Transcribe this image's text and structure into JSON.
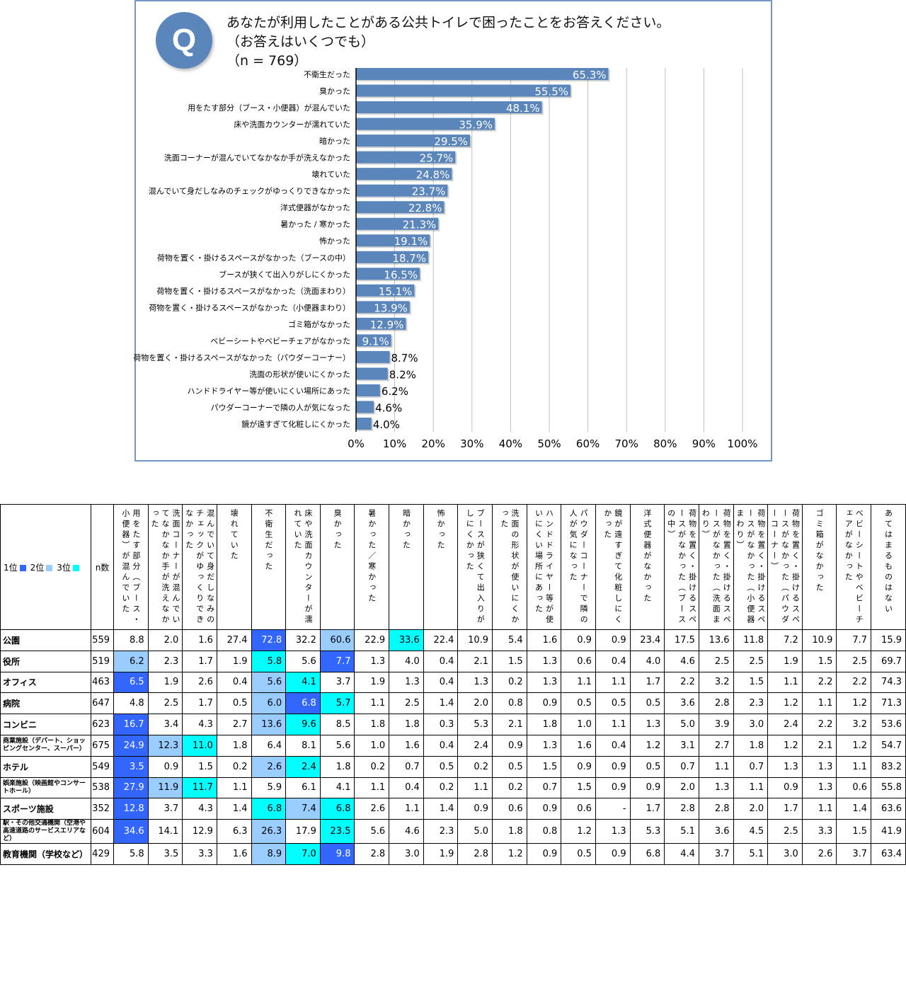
{
  "question": {
    "badge": "Q",
    "line1": "あなたが利用したことがある公共トイレで困ったことをお答えください。",
    "line2": "（お答えはいくつでも）",
    "line3": "（n = 769）"
  },
  "colors": {
    "bar": "#5b86bc",
    "rank1": "#3366ff",
    "rank2": "#99ccff",
    "rank3": "#00ffff"
  },
  "chart_data": {
    "type": "bar",
    "orientation": "horizontal",
    "title": "あなたが利用したことがある公共トイレで困ったことをお答えください。（お答えはいくつでも）（n = 769）",
    "categories": [
      "不衛生だった",
      "臭かった",
      "用をたす部分（ブース・小便器）が混んでいた",
      "床や洗面カウンターが濡れていた",
      "暗かった",
      "洗面コーナーが混んでいてなかなか手が洗えなかった",
      "壊れていた",
      "混んでいて身だしなみのチェックがゆっくりできなかった",
      "洋式便器がなかった",
      "暑かった / 寒かった",
      "怖かった",
      "荷物を置く・掛けるスペースがなかった（ブースの中）",
      "ブースが狭くて出入りがしにくかった",
      "荷物を置く・掛けるスペースがなかった（洗面まわり）",
      "荷物を置く・掛けるスペースがなかった（小便器まわり）",
      "ゴミ箱がなかった",
      "ベビーシートやベビーチェアがなかった",
      "荷物を置く・掛けるスペースがなかった（パウダーコーナー）",
      "洗面の形状が使いにくかった",
      "ハンドドライヤー等が使いにくい場所にあった",
      "パウダーコーナーで隣の人が気になった",
      "鏡が遠すぎて化粧しにくかった"
    ],
    "values": [
      65.3,
      55.5,
      48.1,
      35.9,
      29.5,
      25.7,
      24.8,
      23.7,
      22.8,
      21.3,
      19.1,
      18.7,
      16.5,
      15.1,
      13.9,
      12.9,
      9.1,
      8.7,
      8.2,
      6.2,
      4.6,
      4.0
    ],
    "value_labels": [
      "65.3%",
      "55.5%",
      "48.1%",
      "35.9%",
      "29.5%",
      "25.7%",
      "24.8%",
      "23.7%",
      "22.8%",
      "21.3%",
      "19.1%",
      "18.7%",
      "16.5%",
      "15.1%",
      "13.9%",
      "12.9%",
      "9.1%",
      "8.7%",
      "8.2%",
      "6.2%",
      "4.6%",
      "4.0%"
    ],
    "xlim": [
      0,
      100
    ],
    "xticks": [
      "0%",
      "10%",
      "20%",
      "30%",
      "40%",
      "50%",
      "60%",
      "70%",
      "80%",
      "90%",
      "100%"
    ],
    "grid": true,
    "xlabel": "",
    "ylabel": ""
  },
  "table": {
    "legend": {
      "rank1": "1位",
      "rank2": "2位",
      "rank3": "3位"
    },
    "n_header": "n数",
    "columns": [
      "用をたす部分（ブース・小便器）が混んでいた",
      "洗面コーナーが混んでいてなかなか手が洗えなかった",
      "混んでいて身だしなみのチェックがゆっくりできなかった",
      "壊れていた",
      "不衛生だった",
      "床や洗面カウンターが濡れていた",
      "臭かった",
      "暑かった／寒かった",
      "暗かった",
      "怖かった",
      "ブースが狭くて出入りがしにくかった",
      "洗面の形状が使いにくかった",
      "ハンドドライヤー等が使いにくい場所にあった",
      "パウダーコーナーで隣の人が気になった",
      "鏡が遠すぎて化粧しにくかった",
      "洋式便器がなかった",
      "荷物を置く・掛けるスペースがなかった（ブースの中）",
      "荷物を置く・掛けるスペースがなかった（洗面まわり）",
      "荷物を置く・掛けるスペースがなかった（小便器まわり）",
      "荷物を置く・掛けるスペースがなかった（パウダーコーナー）",
      "ゴミ箱がなかった",
      "ベビーシートやベビーチェアがなかった",
      "あてはまるものはない"
    ],
    "rows": [
      {
        "label": "公園",
        "n": "559",
        "values": [
          "8.8",
          "2.0",
          "1.6",
          "27.4",
          "72.8",
          "32.2",
          "60.6",
          "22.9",
          "33.6",
          "22.4",
          "10.9",
          "5.4",
          "1.6",
          "0.9",
          "0.9",
          "23.4",
          "17.5",
          "13.6",
          "11.8",
          "7.2",
          "10.9",
          "7.7",
          "15.9"
        ],
        "ranks": {
          "4": 1,
          "6": 2,
          "8": 3
        }
      },
      {
        "label": "役所",
        "n": "519",
        "values": [
          "6.2",
          "2.3",
          "1.7",
          "1.9",
          "5.8",
          "5.6",
          "7.7",
          "1.3",
          "4.0",
          "0.4",
          "2.1",
          "1.5",
          "1.3",
          "0.6",
          "0.4",
          "4.0",
          "4.6",
          "2.5",
          "2.5",
          "1.9",
          "1.5",
          "2.5",
          "69.7"
        ],
        "ranks": {
          "0": 2,
          "4": 3,
          "6": 1
        }
      },
      {
        "label": "オフィス",
        "n": "463",
        "values": [
          "6.5",
          "1.9",
          "2.6",
          "0.4",
          "5.6",
          "4.1",
          "3.7",
          "1.9",
          "1.3",
          "0.4",
          "1.3",
          "0.2",
          "1.3",
          "1.1",
          "1.1",
          "1.7",
          "2.2",
          "3.2",
          "1.5",
          "1.1",
          "2.2",
          "2.2",
          "74.3"
        ],
        "ranks": {
          "0": 1,
          "4": 2,
          "5": 3
        }
      },
      {
        "label": "病院",
        "n": "647",
        "values": [
          "4.8",
          "2.5",
          "1.7",
          "0.5",
          "6.0",
          "6.8",
          "5.7",
          "1.1",
          "2.5",
          "1.4",
          "2.0",
          "0.8",
          "0.9",
          "0.5",
          "0.5",
          "0.5",
          "3.6",
          "2.8",
          "2.3",
          "1.2",
          "1.1",
          "1.2",
          "71.3"
        ],
        "ranks": {
          "4": 2,
          "5": 1,
          "6": 3
        }
      },
      {
        "label": "コンビニ",
        "n": "623",
        "values": [
          "16.7",
          "3.4",
          "4.3",
          "2.7",
          "13.6",
          "9.6",
          "8.5",
          "1.8",
          "1.8",
          "0.3",
          "5.3",
          "2.1",
          "1.8",
          "1.0",
          "1.1",
          "1.3",
          "5.0",
          "3.9",
          "3.0",
          "2.4",
          "2.2",
          "3.2",
          "53.6"
        ],
        "ranks": {
          "0": 1,
          "4": 2,
          "5": 3
        }
      },
      {
        "label": "商業施設（デパート、ショッピングセンター、スーパー）",
        "small": true,
        "n": "675",
        "values": [
          "24.9",
          "12.3",
          "11.0",
          "1.8",
          "6.4",
          "8.1",
          "5.6",
          "1.0",
          "1.6",
          "0.4",
          "2.4",
          "0.9",
          "1.3",
          "1.6",
          "0.4",
          "1.2",
          "3.1",
          "2.7",
          "1.8",
          "1.2",
          "2.1",
          "1.2",
          "54.7"
        ],
        "ranks": {
          "0": 1,
          "1": 2,
          "2": 3
        }
      },
      {
        "label": "ホテル",
        "n": "549",
        "values": [
          "3.5",
          "0.9",
          "1.5",
          "0.2",
          "2.6",
          "2.4",
          "1.8",
          "0.2",
          "0.7",
          "0.5",
          "0.2",
          "0.5",
          "1.5",
          "0.9",
          "0.9",
          "0.5",
          "0.7",
          "1.1",
          "0.7",
          "1.3",
          "1.3",
          "1.1",
          "83.2"
        ],
        "ranks": {
          "0": 1,
          "4": 2,
          "5": 3
        }
      },
      {
        "label": "娯楽施設（映画館やコンサートホール）",
        "small": true,
        "n": "538",
        "values": [
          "27.9",
          "11.9",
          "11.7",
          "1.1",
          "5.9",
          "6.1",
          "4.1",
          "1.1",
          "0.4",
          "0.2",
          "1.1",
          "0.2",
          "0.7",
          "1.5",
          "0.9",
          "0.9",
          "2.0",
          "1.3",
          "1.1",
          "0.9",
          "1.3",
          "0.6",
          "55.8"
        ],
        "ranks": {
          "0": 1,
          "1": 2,
          "2": 3
        }
      },
      {
        "label": "スポーツ施設",
        "n": "352",
        "values": [
          "12.8",
          "3.7",
          "4.3",
          "1.4",
          "6.8",
          "7.4",
          "6.8",
          "2.6",
          "1.1",
          "1.4",
          "0.9",
          "0.6",
          "0.9",
          "0.6",
          "-",
          "1.7",
          "2.8",
          "2.8",
          "2.0",
          "1.7",
          "1.1",
          "1.4",
          "63.6"
        ],
        "ranks": {
          "0": 1,
          "4": 3,
          "5": 2,
          "6": 3
        }
      },
      {
        "label": "駅・その他交通機関（空港や高速道路のサービスエリアなど）",
        "small": true,
        "n": "604",
        "values": [
          "34.6",
          "14.1",
          "12.9",
          "6.3",
          "26.3",
          "17.9",
          "23.5",
          "5.6",
          "4.6",
          "2.3",
          "5.0",
          "1.8",
          "0.8",
          "1.2",
          "1.3",
          "5.3",
          "5.1",
          "3.6",
          "4.5",
          "2.5",
          "3.3",
          "1.5",
          "41.9"
        ],
        "ranks": {
          "0": 1,
          "4": 2,
          "6": 3
        }
      },
      {
        "label": "教育機関（学校など）",
        "n": "429",
        "values": [
          "5.8",
          "3.5",
          "3.3",
          "1.6",
          "8.9",
          "7.0",
          "9.8",
          "2.8",
          "3.0",
          "1.9",
          "2.8",
          "1.2",
          "0.9",
          "0.5",
          "0.9",
          "6.8",
          "4.4",
          "3.7",
          "5.1",
          "3.0",
          "2.6",
          "3.7",
          "63.4"
        ],
        "ranks": {
          "4": 2,
          "5": 3,
          "6": 1
        }
      }
    ]
  }
}
